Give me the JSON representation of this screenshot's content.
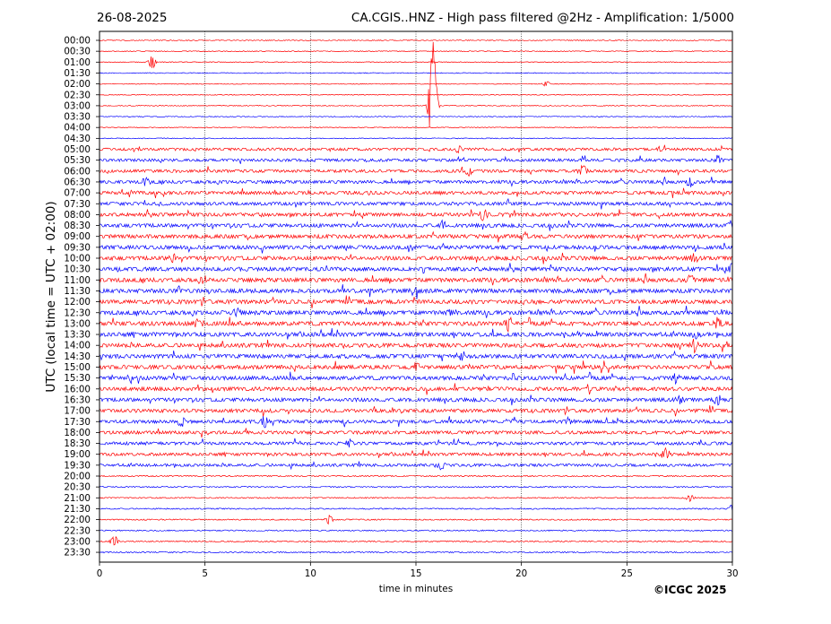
{
  "header": {
    "date": "26-08-2025",
    "station_title": "CA.CGIS..HNZ - High pass filtered @2Hz - Amplification: 1/5000"
  },
  "footer": {
    "credit": "©ICGC 2025"
  },
  "colors": {
    "trace_a": "#ff0000",
    "trace_b": "#0000ff",
    "grid": "#000000",
    "frame": "#000000"
  },
  "chart_data": {
    "type": "line",
    "chart_kind": "helicorder seismogram",
    "xlabel": "time in minutes",
    "ylabel": "UTC (local time = UTC + 02:00)",
    "xlim": [
      0,
      30
    ],
    "x_ticks": [
      0,
      5,
      10,
      15,
      20,
      25,
      30
    ],
    "x_tick_labels": [
      "0",
      "5",
      "10",
      "15",
      "20",
      "25",
      "30"
    ],
    "grid": "vertical dotted at 5, 10, 15, 20, 25",
    "row_colors_alternate": [
      "red",
      "red",
      "blue",
      "blue"
    ],
    "rows": [
      {
        "label": "00:00",
        "color": "red"
      },
      {
        "label": "00:30",
        "color": "red"
      },
      {
        "label": "01:00",
        "color": "red"
      },
      {
        "label": "01:30",
        "color": "blue"
      },
      {
        "label": "02:00",
        "color": "red"
      },
      {
        "label": "02:30",
        "color": "red"
      },
      {
        "label": "03:00",
        "color": "red"
      },
      {
        "label": "03:30",
        "color": "blue"
      },
      {
        "label": "04:00",
        "color": "red"
      },
      {
        "label": "04:30",
        "color": "blue"
      },
      {
        "label": "05:00",
        "color": "red"
      },
      {
        "label": "05:30",
        "color": "blue"
      },
      {
        "label": "06:00",
        "color": "red"
      },
      {
        "label": "06:30",
        "color": "blue"
      },
      {
        "label": "07:00",
        "color": "red"
      },
      {
        "label": "07:30",
        "color": "blue"
      },
      {
        "label": "08:00",
        "color": "red"
      },
      {
        "label": "08:30",
        "color": "blue"
      },
      {
        "label": "09:00",
        "color": "red"
      },
      {
        "label": "09:30",
        "color": "blue"
      },
      {
        "label": "10:00",
        "color": "red"
      },
      {
        "label": "10:30",
        "color": "blue"
      },
      {
        "label": "11:00",
        "color": "red"
      },
      {
        "label": "11:30",
        "color": "blue"
      },
      {
        "label": "12:00",
        "color": "red"
      },
      {
        "label": "12:30",
        "color": "blue"
      },
      {
        "label": "13:00",
        "color": "red"
      },
      {
        "label": "13:30",
        "color": "blue"
      },
      {
        "label": "14:00",
        "color": "red"
      },
      {
        "label": "14:30",
        "color": "blue"
      },
      {
        "label": "15:00",
        "color": "red"
      },
      {
        "label": "15:30",
        "color": "blue"
      },
      {
        "label": "16:00",
        "color": "red"
      },
      {
        "label": "16:30",
        "color": "blue"
      },
      {
        "label": "17:00",
        "color": "red"
      },
      {
        "label": "17:30",
        "color": "blue"
      },
      {
        "label": "18:00",
        "color": "red"
      },
      {
        "label": "18:30",
        "color": "blue"
      },
      {
        "label": "19:00",
        "color": "red"
      },
      {
        "label": "19:30",
        "color": "blue"
      },
      {
        "label": "20:00",
        "color": "red"
      },
      {
        "label": "20:30",
        "color": "blue"
      },
      {
        "label": "21:00",
        "color": "red"
      },
      {
        "label": "21:30",
        "color": "blue"
      },
      {
        "label": "22:00",
        "color": "red"
      },
      {
        "label": "22:30",
        "color": "blue"
      },
      {
        "label": "23:00",
        "color": "red"
      },
      {
        "label": "23:30",
        "color": "blue"
      }
    ],
    "events": [
      {
        "row": "01:00",
        "minute": 2.5,
        "amplitude": 0.9
      },
      {
        "row": "02:00",
        "minute": 21.2,
        "amplitude": 0.4
      },
      {
        "row": "03:00",
        "minute": 15.8,
        "amplitude": 9.0
      },
      {
        "row": "05:00",
        "minute": 17.0,
        "amplitude": 0.5
      },
      {
        "row": "05:00",
        "minute": 26.5,
        "amplitude": 0.5
      },
      {
        "row": "05:30",
        "minute": 29.3,
        "amplitude": 0.6
      },
      {
        "row": "06:00",
        "minute": 22.9,
        "amplitude": 0.9
      },
      {
        "row": "06:00",
        "minute": 17.5,
        "amplitude": 0.6
      },
      {
        "row": "06:30",
        "minute": 2.2,
        "amplitude": 0.6
      },
      {
        "row": "06:30",
        "minute": 28.0,
        "amplitude": 0.6
      },
      {
        "row": "08:00",
        "minute": 18.2,
        "amplitude": 0.8
      },
      {
        "row": "08:30",
        "minute": 16.3,
        "amplitude": 0.6
      },
      {
        "row": "08:30",
        "minute": 30.0,
        "amplitude": 0.7
      },
      {
        "row": "09:00",
        "minute": 20.1,
        "amplitude": 0.6
      },
      {
        "row": "10:00",
        "minute": 3.5,
        "amplitude": 0.6
      },
      {
        "row": "10:00",
        "minute": 28.2,
        "amplitude": 0.5
      },
      {
        "row": "10:30",
        "minute": 30.0,
        "amplitude": 0.6
      },
      {
        "row": "11:00",
        "minute": 5.0,
        "amplitude": 0.6
      },
      {
        "row": "11:00",
        "minute": 28.0,
        "amplitude": 0.6
      },
      {
        "row": "11:30",
        "minute": 14.9,
        "amplitude": 0.6
      },
      {
        "row": "12:30",
        "minute": 6.5,
        "amplitude": 0.8
      },
      {
        "row": "12:30",
        "minute": 16.7,
        "amplitude": 0.6
      },
      {
        "row": "13:00",
        "minute": 4.7,
        "amplitude": 0.7
      },
      {
        "row": "13:00",
        "minute": 19.4,
        "amplitude": 1.1
      },
      {
        "row": "13:00",
        "minute": 29.3,
        "amplitude": 0.7
      },
      {
        "row": "13:30",
        "minute": 28.3,
        "amplitude": 0.7
      },
      {
        "row": "14:00",
        "minute": 28.2,
        "amplitude": 0.9
      },
      {
        "row": "14:30",
        "minute": 17.2,
        "amplitude": 0.5
      },
      {
        "row": "15:00",
        "minute": 15.0,
        "amplitude": 0.6
      },
      {
        "row": "15:30",
        "minute": 1.5,
        "amplitude": 0.6
      },
      {
        "row": "15:30",
        "minute": 19.6,
        "amplitude": 0.6
      },
      {
        "row": "15:30",
        "minute": 27.3,
        "amplitude": 0.6
      },
      {
        "row": "16:30",
        "minute": 27.5,
        "amplitude": 0.6
      },
      {
        "row": "16:30",
        "minute": 29.3,
        "amplitude": 0.7
      },
      {
        "row": "17:30",
        "minute": 3.9,
        "amplitude": 0.7
      },
      {
        "row": "17:30",
        "minute": 7.8,
        "amplitude": 1.0
      },
      {
        "row": "17:30",
        "minute": 22.3,
        "amplitude": 0.6
      },
      {
        "row": "18:30",
        "minute": 11.8,
        "amplitude": 0.6
      },
      {
        "row": "19:00",
        "minute": 26.8,
        "amplitude": 0.8
      },
      {
        "row": "19:30",
        "minute": 16.2,
        "amplitude": 0.5
      },
      {
        "row": "21:00",
        "minute": 28.0,
        "amplitude": 0.5
      },
      {
        "row": "21:30",
        "minute": 30.0,
        "amplitude": 0.6
      },
      {
        "row": "22:00",
        "minute": 10.9,
        "amplitude": 0.7
      },
      {
        "row": "23:00",
        "minute": 0.7,
        "amplitude": 0.7
      }
    ]
  }
}
